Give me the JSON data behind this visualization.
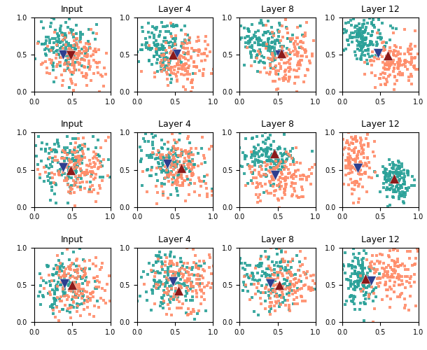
{
  "titles_cols": [
    "Input",
    "Layer 4",
    "Layer 8",
    "Layer 12"
  ],
  "nrows": 3,
  "ncols": 4,
  "color_teal": "#2aa198",
  "color_orange": "#ff8c69",
  "color_blue_marker": "#2e3f8f",
  "color_red_marker": "#8b1a1a",
  "xlim": [
    0.0,
    1.0
  ],
  "ylim": [
    0.0,
    1.0
  ],
  "xticks": [
    0.0,
    0.5,
    1.0
  ],
  "yticks": [
    0.0,
    0.5,
    1.0
  ],
  "marker_size_scatter": 5,
  "marker_size_triangle": 100,
  "figsize": [
    6.1,
    5.0
  ],
  "dpi": 100,
  "subplot_hspace": 0.55,
  "subplot_wspace": 0.35
}
